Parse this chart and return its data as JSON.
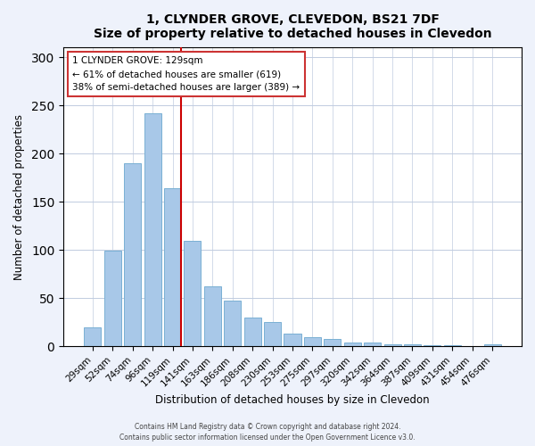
{
  "title": "1, CLYNDER GROVE, CLEVEDON, BS21 7DF",
  "subtitle": "Size of property relative to detached houses in Clevedon",
  "xlabel": "Distribution of detached houses by size in Clevedon",
  "ylabel": "Number of detached properties",
  "bar_labels": [
    "29sqm",
    "52sqm",
    "74sqm",
    "96sqm",
    "119sqm",
    "141sqm",
    "163sqm",
    "186sqm",
    "208sqm",
    "230sqm",
    "253sqm",
    "275sqm",
    "297sqm",
    "320sqm",
    "342sqm",
    "364sqm",
    "387sqm",
    "409sqm",
    "431sqm",
    "454sqm",
    "476sqm"
  ],
  "bar_values": [
    20,
    99,
    190,
    242,
    164,
    110,
    62,
    48,
    30,
    25,
    13,
    10,
    8,
    4,
    4,
    2,
    2,
    1,
    1,
    0,
    2
  ],
  "bar_color": "#a8c8e8",
  "bar_edge_color": "#7ab0d4",
  "vline_color": "#cc0000",
  "ylim": [
    0,
    310
  ],
  "yticks": [
    0,
    50,
    100,
    150,
    200,
    250,
    300
  ],
  "annotation_title": "1 CLYNDER GROVE: 129sqm",
  "annotation_line1": "← 61% of detached houses are smaller (619)",
  "annotation_line2": "38% of semi-detached houses are larger (389) →",
  "footer1": "Contains HM Land Registry data © Crown copyright and database right 2024.",
  "footer2": "Contains public sector information licensed under the Open Government Licence v3.0.",
  "background_color": "#eef2fb",
  "plot_bg_color": "#ffffff"
}
